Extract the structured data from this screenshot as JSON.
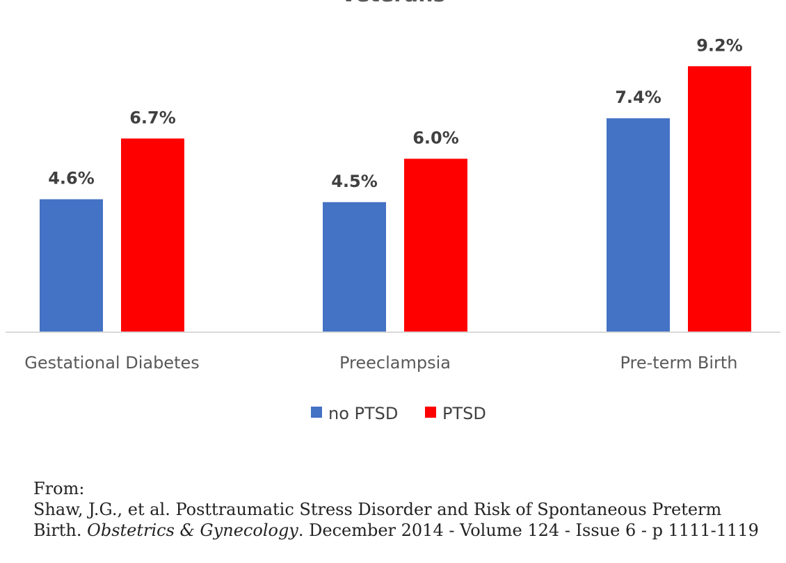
{
  "chart_data": {
    "type": "bar",
    "title": "Veterans",
    "categories": [
      "Gestational Diabetes",
      "Preeclampsia",
      "Pre-term Birth"
    ],
    "series": [
      {
        "name": "no PTSD",
        "values": [
          4.6,
          4.5,
          7.4
        ],
        "labels": [
          "4.6%",
          "4.5%",
          "7.4%"
        ],
        "color": "#4472C4"
      },
      {
        "name": "PTSD",
        "values": [
          6.7,
          6.0,
          9.2
        ],
        "labels": [
          "6.7%",
          "6.0%",
          "9.2%"
        ],
        "color": "#FF0000"
      }
    ],
    "ylim": [
      0,
      10
    ],
    "grid": false,
    "legend": "bottom",
    "axis_color": "#D9D9D9"
  },
  "citation": {
    "from_label": "From:",
    "line1": "Shaw, J.G., et al. Posttraumatic Stress Disorder and Risk of Spontaneous Preterm",
    "line2_start": "Birth. ",
    "journal": "Obstetrics & Gynecology",
    "line2_end": ". December 2014 - Volume 124 - Issue 6 - p 1111-1119"
  }
}
